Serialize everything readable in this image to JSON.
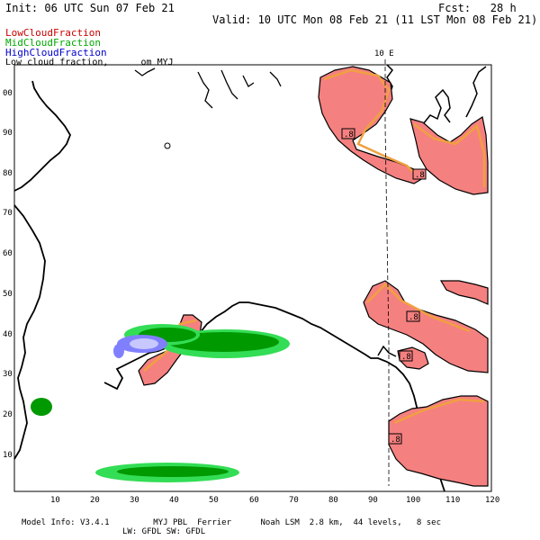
{
  "header": {
    "init": "Init: 06 UTC Sun 07 Feb 21",
    "fcst": "Fcst:   28 h",
    "valid": "Valid: 10 UTC Mon 08 Feb 21 (11 LST Mon 08 Feb 21)"
  },
  "legend": {
    "low": "LowCloudFraction",
    "mid": "MidCloudFraction",
    "high": "HighCloudFraction",
    "subtitle": "Low cloud fraction,      om MYJ"
  },
  "colors": {
    "low_fill": "#f58080",
    "low_contour": "#f0a040",
    "mid": "#009900",
    "mid_light": "#33dd55",
    "high": "#8080ff",
    "legend_low": "#cc0000",
    "legend_mid": "#00aa00",
    "legend_high": "#0000cc"
  },
  "meridian_label": "10 E",
  "contour_labels": [
    ".8",
    ".8",
    ".8",
    ".8",
    ".8"
  ],
  "axes": {
    "x_ticks": [
      "10",
      "20",
      "30",
      "40",
      "50",
      "60",
      "70",
      "80",
      "90",
      "100",
      "110",
      "120"
    ],
    "y_ticks": [
      "10",
      "20",
      "30",
      "40",
      "50",
      "60",
      "70",
      "80",
      "90",
      "00"
    ]
  },
  "footer": {
    "line1": "Model Info: V3.4.1         MYJ PBL  Ferrier      Noah LSM  2.8 km,  44 levels,   8 sec",
    "line2": "LW: GFDL SW: GFDL"
  }
}
